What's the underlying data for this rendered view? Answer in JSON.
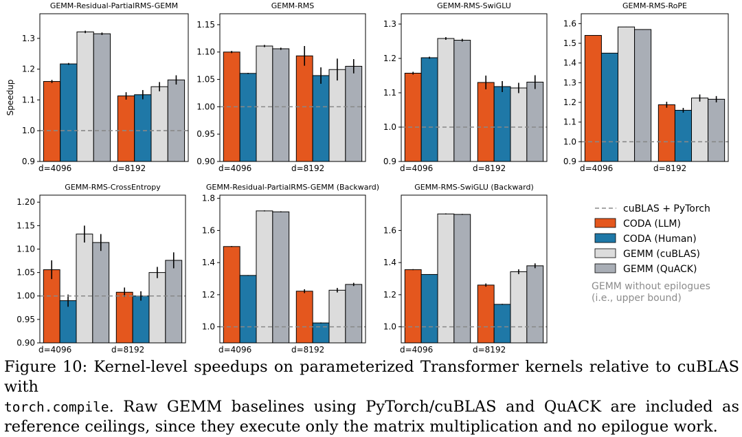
{
  "ylabel": "Speedup",
  "colors": {
    "coda_llm": "#e4571e",
    "coda_human": "#1f78a7",
    "gemm_cublas": "#dcdcdc",
    "gemm_quack": "#a9aeb6",
    "baseline_line": "#888888",
    "note_text": "#8c8c8c"
  },
  "legend": {
    "baseline": "cuBLAS + PyTorch",
    "coda_llm": "CODA (LLM)",
    "coda_human": "CODA (Human)",
    "gemm_cublas": "GEMM (cuBLAS)",
    "gemm_quack": "GEMM (QuACK)",
    "note_line1": "GEMM without epilogues",
    "note_line2": "(i.e., upper bound)"
  },
  "caption": {
    "line1": "Figure 10: Kernel-level speedups on parameterized Transformer kernels relative to cuBLAS with",
    "line2_code": "torch.compile",
    "line2_rest": ". Raw GEMM baselines using PyTorch/cuBLAS and QuACK are included as",
    "line3": "reference ceilings, since they execute only the matrix multiplication and no epilogue work."
  },
  "chart_data": [
    {
      "type": "bar",
      "title": "GEMM-Residual-PartialRMS-GEMM",
      "categories": [
        "d=4096",
        "d=8192"
      ],
      "series": [
        {
          "name": "CODA (LLM)",
          "values": [
            1.16,
            1.113
          ],
          "errors": [
            0.005,
            0.012
          ]
        },
        {
          "name": "CODA (Human)",
          "values": [
            1.217,
            1.117
          ],
          "errors": [
            0.003,
            0.015
          ]
        },
        {
          "name": "GEMM (cuBLAS)",
          "values": [
            1.321,
            1.143
          ],
          "errors": [
            0.004,
            0.015
          ]
        },
        {
          "name": "GEMM (QuACK)",
          "values": [
            1.315,
            1.165
          ],
          "errors": [
            0.004,
            0.015
          ]
        }
      ],
      "baseline": 1.0,
      "ylim": [
        0.9,
        1.38
      ],
      "yticks": [
        "0.9",
        "1.0",
        "1.1",
        "1.2",
        "1.3"
      ],
      "ylabel": "Speedup"
    },
    {
      "type": "bar",
      "title": "GEMM-RMS",
      "categories": [
        "d=4096",
        "d=8192"
      ],
      "series": [
        {
          "name": "CODA (LLM)",
          "values": [
            1.1,
            1.093
          ],
          "errors": [
            0.002,
            0.018
          ]
        },
        {
          "name": "CODA (Human)",
          "values": [
            1.061,
            1.057
          ],
          "errors": [
            0.001,
            0.015
          ]
        },
        {
          "name": "GEMM (cuBLAS)",
          "values": [
            1.111,
            1.068
          ],
          "errors": [
            0.002,
            0.02
          ]
        },
        {
          "name": "GEMM (QuACK)",
          "values": [
            1.106,
            1.074
          ],
          "errors": [
            0.002,
            0.013
          ]
        }
      ],
      "baseline": 1.0,
      "ylim": [
        0.9,
        1.17
      ],
      "yticks": [
        "0.90",
        "0.95",
        "1.00",
        "1.05",
        "1.10",
        "1.15"
      ]
    },
    {
      "type": "bar",
      "title": "GEMM-RMS-SwiGLU",
      "categories": [
        "d=4096",
        "d=8192"
      ],
      "series": [
        {
          "name": "CODA (LLM)",
          "values": [
            1.157,
            1.13
          ],
          "errors": [
            0.004,
            0.02
          ]
        },
        {
          "name": "CODA (Human)",
          "values": [
            1.202,
            1.118
          ],
          "errors": [
            0.003,
            0.016
          ]
        },
        {
          "name": "GEMM (cuBLAS)",
          "values": [
            1.258,
            1.114
          ],
          "errors": [
            0.004,
            0.015
          ]
        },
        {
          "name": "GEMM (QuACK)",
          "values": [
            1.253,
            1.131
          ],
          "errors": [
            0.004,
            0.02
          ]
        }
      ],
      "baseline": 1.0,
      "ylim": [
        0.9,
        1.33
      ],
      "yticks": [
        "0.9",
        "1.0",
        "1.1",
        "1.2",
        "1.3"
      ]
    },
    {
      "type": "bar",
      "title": "GEMM-RMS-RoPE",
      "categories": [
        "d=4096",
        "d=8192"
      ],
      "series": [
        {
          "name": "CODA (LLM)",
          "values": [
            1.54,
            1.188
          ],
          "errors": [
            0.001,
            0.015
          ]
        },
        {
          "name": "CODA (Human)",
          "values": [
            1.45,
            1.16
          ],
          "errors": [
            0.001,
            0.012
          ]
        },
        {
          "name": "GEMM (cuBLAS)",
          "values": [
            1.583,
            1.222
          ],
          "errors": [
            0.001,
            0.018
          ]
        },
        {
          "name": "GEMM (QuACK)",
          "values": [
            1.57,
            1.216
          ],
          "errors": [
            0.001,
            0.016
          ]
        }
      ],
      "baseline": 1.0,
      "ylim": [
        0.9,
        1.65
      ],
      "yticks": [
        "0.9",
        "1.0",
        "1.1",
        "1.2",
        "1.3",
        "1.4",
        "1.5",
        "1.6"
      ]
    },
    {
      "type": "bar",
      "title": "GEMM-RMS-CrossEntropy",
      "categories": [
        "d=4096",
        "d=8192"
      ],
      "series": [
        {
          "name": "CODA (LLM)",
          "values": [
            1.056,
            1.008
          ],
          "errors": [
            0.02,
            0.01
          ]
        },
        {
          "name": "CODA (Human)",
          "values": [
            0.99,
            1.0
          ],
          "errors": [
            0.013,
            0.01
          ]
        },
        {
          "name": "GEMM (cuBLAS)",
          "values": [
            1.132,
            1.05
          ],
          "errors": [
            0.018,
            0.012
          ]
        },
        {
          "name": "GEMM (QuACK)",
          "values": [
            1.114,
            1.076
          ],
          "errors": [
            0.018,
            0.017
          ]
        }
      ],
      "baseline": 1.0,
      "ylim": [
        0.9,
        1.215
      ],
      "yticks": [
        "0.90",
        "0.95",
        "1.00",
        "1.05",
        "1.10",
        "1.15",
        "1.20"
      ]
    },
    {
      "type": "bar",
      "title": "GEMM-Residual-PartialRMS-GEMM (Backward)",
      "categories": [
        "d=4096",
        "d=8192"
      ],
      "series": [
        {
          "name": "CODA (LLM)",
          "values": [
            1.5,
            1.222
          ],
          "errors": [
            0.003,
            0.012
          ]
        },
        {
          "name": "CODA (Human)",
          "values": [
            1.32,
            1.024
          ],
          "errors": [
            0.002,
            0.003
          ]
        },
        {
          "name": "GEMM (cuBLAS)",
          "values": [
            1.722,
            1.228
          ],
          "errors": [
            0.003,
            0.014
          ]
        },
        {
          "name": "GEMM (QuACK)",
          "values": [
            1.716,
            1.264
          ],
          "errors": [
            0.003,
            0.01
          ]
        }
      ],
      "baseline": 1.0,
      "ylim": [
        0.9,
        1.82
      ],
      "yticks": [
        "1.0",
        "1.2",
        "1.4",
        "1.6",
        "1.8"
      ]
    },
    {
      "type": "bar",
      "title": "GEMM-RMS-SwiGLU (Backward)",
      "categories": [
        "d=4096",
        "d=8192"
      ],
      "series": [
        {
          "name": "CODA (LLM)",
          "values": [
            1.356,
            1.26
          ],
          "errors": [
            0.003,
            0.01
          ]
        },
        {
          "name": "CODA (Human)",
          "values": [
            1.326,
            1.14
          ],
          "errors": [
            0.002,
            0.003
          ]
        },
        {
          "name": "GEMM (cuBLAS)",
          "values": [
            1.703,
            1.343
          ],
          "errors": [
            0.003,
            0.015
          ]
        },
        {
          "name": "GEMM (QuACK)",
          "values": [
            1.7,
            1.38
          ],
          "errors": [
            0.003,
            0.015
          ]
        }
      ],
      "baseline": 1.0,
      "ylim": [
        0.9,
        1.82
      ],
      "yticks": [
        "1.0",
        "1.2",
        "1.4",
        "1.6"
      ]
    }
  ]
}
